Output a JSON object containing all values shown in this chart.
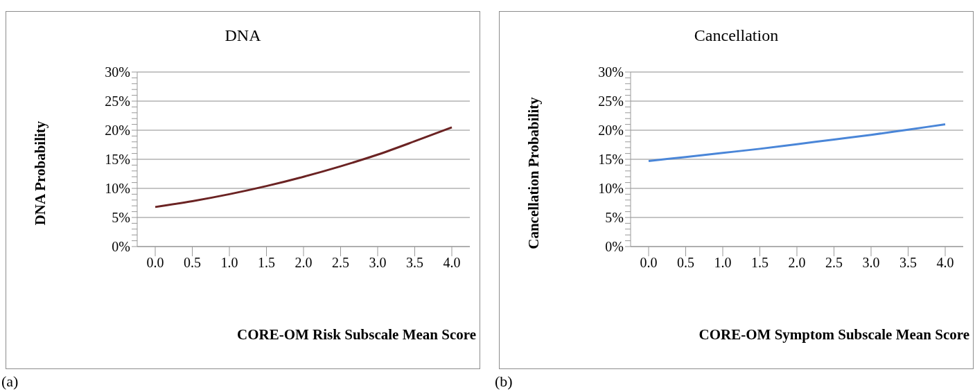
{
  "chart_data": [
    {
      "type": "line",
      "title": "DNA",
      "xlabel": "CORE-OM Risk Subscale Mean Score",
      "ylabel": "DNA Probability",
      "categories": [
        "0.0",
        "0.5",
        "1.0",
        "1.5",
        "2.0",
        "2.5",
        "3.0",
        "3.5",
        "4.0"
      ],
      "series": [
        {
          "color": "#6b2323",
          "values": [
            6.8,
            7.8,
            9.0,
            10.4,
            12.0,
            13.8,
            15.8,
            18.1,
            20.5
          ]
        }
      ],
      "ylim": [
        0,
        30
      ],
      "yticks": [
        {
          "value": 0,
          "label": "0%"
        },
        {
          "value": 1,
          "label": null
        },
        {
          "value": 2,
          "label": null
        },
        {
          "value": 3,
          "label": null
        },
        {
          "value": 4,
          "label": null
        },
        {
          "value": 5,
          "label": "5%"
        },
        {
          "value": 6,
          "label": null
        },
        {
          "value": 7,
          "label": null
        },
        {
          "value": 8,
          "label": null
        },
        {
          "value": 9,
          "label": null
        },
        {
          "value": 10,
          "label": "10%"
        },
        {
          "value": 11,
          "label": null
        },
        {
          "value": 12,
          "label": null
        },
        {
          "value": 13,
          "label": null
        },
        {
          "value": 14,
          "label": null
        },
        {
          "value": 15,
          "label": "15%"
        },
        {
          "value": 16,
          "label": null
        },
        {
          "value": 17,
          "label": null
        },
        {
          "value": 18,
          "label": null
        },
        {
          "value": 19,
          "label": null
        },
        {
          "value": 20,
          "label": "20%"
        },
        {
          "value": 21,
          "label": null
        },
        {
          "value": 22,
          "label": null
        },
        {
          "value": 23,
          "label": null
        },
        {
          "value": 24,
          "label": null
        },
        {
          "value": 25,
          "label": "25%"
        },
        {
          "value": 26,
          "label": null
        },
        {
          "value": 27,
          "label": null
        },
        {
          "value": 28,
          "label": null
        },
        {
          "value": 29,
          "label": null
        },
        {
          "value": 30,
          "label": "30%"
        }
      ],
      "grid": "y",
      "legend": false,
      "annotations": [
        "(a)"
      ]
    },
    {
      "type": "line",
      "title": "Cancellation",
      "xlabel": "CORE-OM Symptom Subscale Mean Score",
      "ylabel": "Cancellation Probability",
      "categories": [
        "0.0",
        "0.5",
        "1.0",
        "1.5",
        "2.0",
        "2.5",
        "3.0",
        "3.5",
        "4.0"
      ],
      "series": [
        {
          "color": "#4a86d8",
          "values": [
            14.7,
            15.4,
            16.1,
            16.8,
            17.6,
            18.4,
            19.2,
            20.1,
            21.0
          ]
        }
      ],
      "ylim": [
        0,
        30
      ],
      "yticks": [
        {
          "value": 0,
          "label": "0%"
        },
        {
          "value": 1,
          "label": null
        },
        {
          "value": 2,
          "label": null
        },
        {
          "value": 3,
          "label": null
        },
        {
          "value": 4,
          "label": null
        },
        {
          "value": 5,
          "label": "5%"
        },
        {
          "value": 6,
          "label": null
        },
        {
          "value": 7,
          "label": null
        },
        {
          "value": 8,
          "label": null
        },
        {
          "value": 9,
          "label": null
        },
        {
          "value": 10,
          "label": "10%"
        },
        {
          "value": 11,
          "label": null
        },
        {
          "value": 12,
          "label": null
        },
        {
          "value": 13,
          "label": null
        },
        {
          "value": 14,
          "label": null
        },
        {
          "value": 15,
          "label": "15%"
        },
        {
          "value": 16,
          "label": null
        },
        {
          "value": 17,
          "label": null
        },
        {
          "value": 18,
          "label": null
        },
        {
          "value": 19,
          "label": null
        },
        {
          "value": 20,
          "label": "20%"
        },
        {
          "value": 21,
          "label": null
        },
        {
          "value": 22,
          "label": null
        },
        {
          "value": 23,
          "label": null
        },
        {
          "value": 24,
          "label": null
        },
        {
          "value": 25,
          "label": "25%"
        },
        {
          "value": 26,
          "label": null
        },
        {
          "value": 27,
          "label": null
        },
        {
          "value": 28,
          "label": null
        },
        {
          "value": 29,
          "label": null
        },
        {
          "value": 30,
          "label": "30%"
        }
      ],
      "grid": "y",
      "legend": false,
      "annotations": [
        "(b)"
      ]
    }
  ]
}
